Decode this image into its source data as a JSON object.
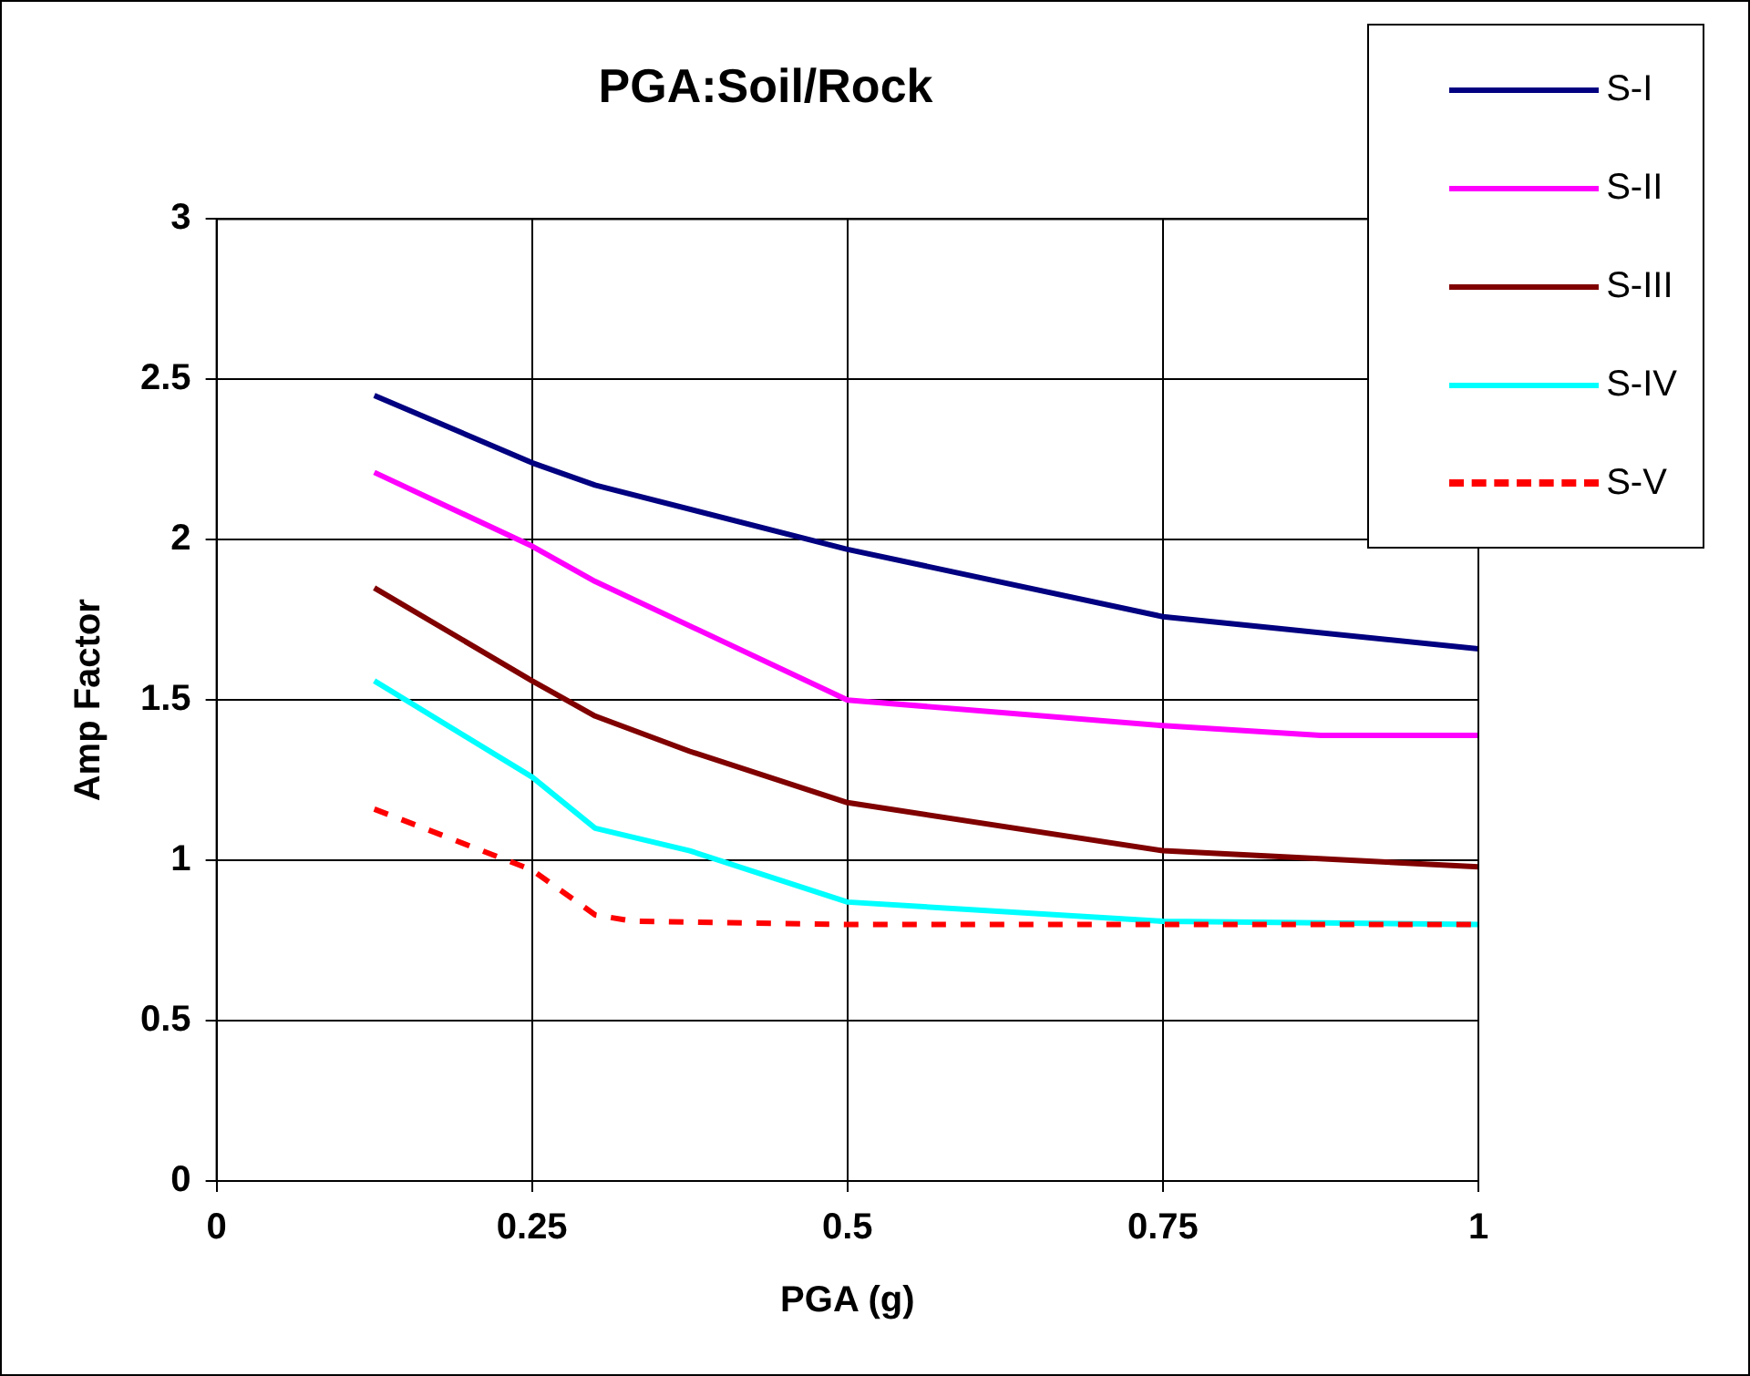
{
  "chart_data": {
    "type": "line",
    "title": "PGA:Soil/Rock",
    "xlabel": "PGA (g)",
    "ylabel": "Amp Factor",
    "xlim": [
      0,
      1
    ],
    "xticks": [
      0,
      0.25,
      0.5,
      0.75,
      1
    ],
    "ylim": [
      0,
      3
    ],
    "yticks": [
      0,
      0.5,
      1,
      1.5,
      2,
      2.5,
      3
    ],
    "grid": true,
    "legend": "top right",
    "marker": "none",
    "series": [
      {
        "name": "S-I",
        "color": "#000080",
        "x": [
          0.125,
          0.25,
          0.3,
          0.5,
          0.75,
          1
        ],
        "values": [
          2.45,
          2.24,
          2.17,
          1.97,
          1.76,
          1.66
        ]
      },
      {
        "name": "S-II",
        "color": "#ff00ff",
        "x": [
          0.125,
          0.25,
          0.3,
          0.5,
          0.75,
          0.875,
          1
        ],
        "values": [
          2.21,
          1.98,
          1.87,
          1.5,
          1.42,
          1.39,
          1.39
        ]
      },
      {
        "name": "S-III",
        "color": "#800000",
        "x": [
          0.125,
          0.25,
          0.3,
          0.375,
          0.5,
          0.75,
          1
        ],
        "values": [
          1.85,
          1.56,
          1.45,
          1.34,
          1.18,
          1.03,
          0.98
        ]
      },
      {
        "name": "S-IV",
        "color": "#00ffff",
        "x": [
          0.125,
          0.25,
          0.3,
          0.375,
          0.5,
          0.75,
          1
        ],
        "values": [
          1.56,
          1.26,
          1.1,
          1.03,
          0.87,
          0.81,
          0.8
        ]
      },
      {
        "name": "S-V",
        "color": "#ff0000",
        "line_style": "dashed",
        "x": [
          0.125,
          0.25,
          0.3,
          0.33,
          0.5,
          0.75,
          1
        ],
        "values": [
          1.16,
          0.97,
          0.83,
          0.81,
          0.8,
          0.8,
          0.8
        ]
      }
    ]
  }
}
